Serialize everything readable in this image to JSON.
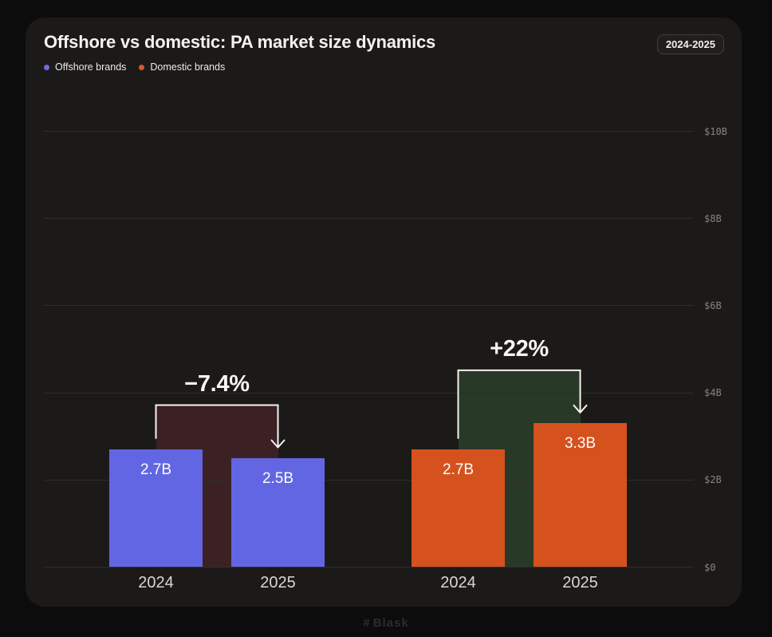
{
  "header": {
    "title": "Offshore vs domestic: PA market size dynamics",
    "period_badge": "2024-2025",
    "legend": [
      {
        "label": "Offshore brands",
        "color": "#6f68ea"
      },
      {
        "label": "Domestic brands",
        "color": "#e0552a"
      }
    ]
  },
  "chart_data": {
    "type": "bar",
    "title": "Offshore vs domestic: PA market size dynamics",
    "unit": "USD billions",
    "ylim": [
      0,
      11
    ],
    "grid": true,
    "y_axis_side": "right",
    "y_ticks": [
      {
        "label": "$10B",
        "value": 10
      },
      {
        "label": "$8B",
        "value": 8
      },
      {
        "label": "$6B",
        "value": 6
      },
      {
        "label": "$4B",
        "value": 4
      },
      {
        "label": "$2B",
        "value": 2
      },
      {
        "label": "$0",
        "value": 0
      }
    ],
    "categories": [
      "2024",
      "2025"
    ],
    "groups": [
      {
        "name": "Offshore brands",
        "bar_color": "#6366e3",
        "connector_fill": "#3b2124",
        "change_label": "−7.4%",
        "bars": [
          {
            "category": "2024",
            "value": 2.7,
            "label": "2.7B"
          },
          {
            "category": "2025",
            "value": 2.5,
            "label": "2.5B"
          }
        ]
      },
      {
        "name": "Domestic brands",
        "bar_color": "#d5521e",
        "connector_fill": "#283a27",
        "change_label": "+22%",
        "bars": [
          {
            "category": "2024",
            "value": 2.7,
            "label": "2.7B"
          },
          {
            "category": "2025",
            "value": 3.3,
            "label": "3.3B"
          }
        ]
      }
    ],
    "arrow_color": "#f6f3ee"
  },
  "footer": {
    "brand": "Blask"
  }
}
